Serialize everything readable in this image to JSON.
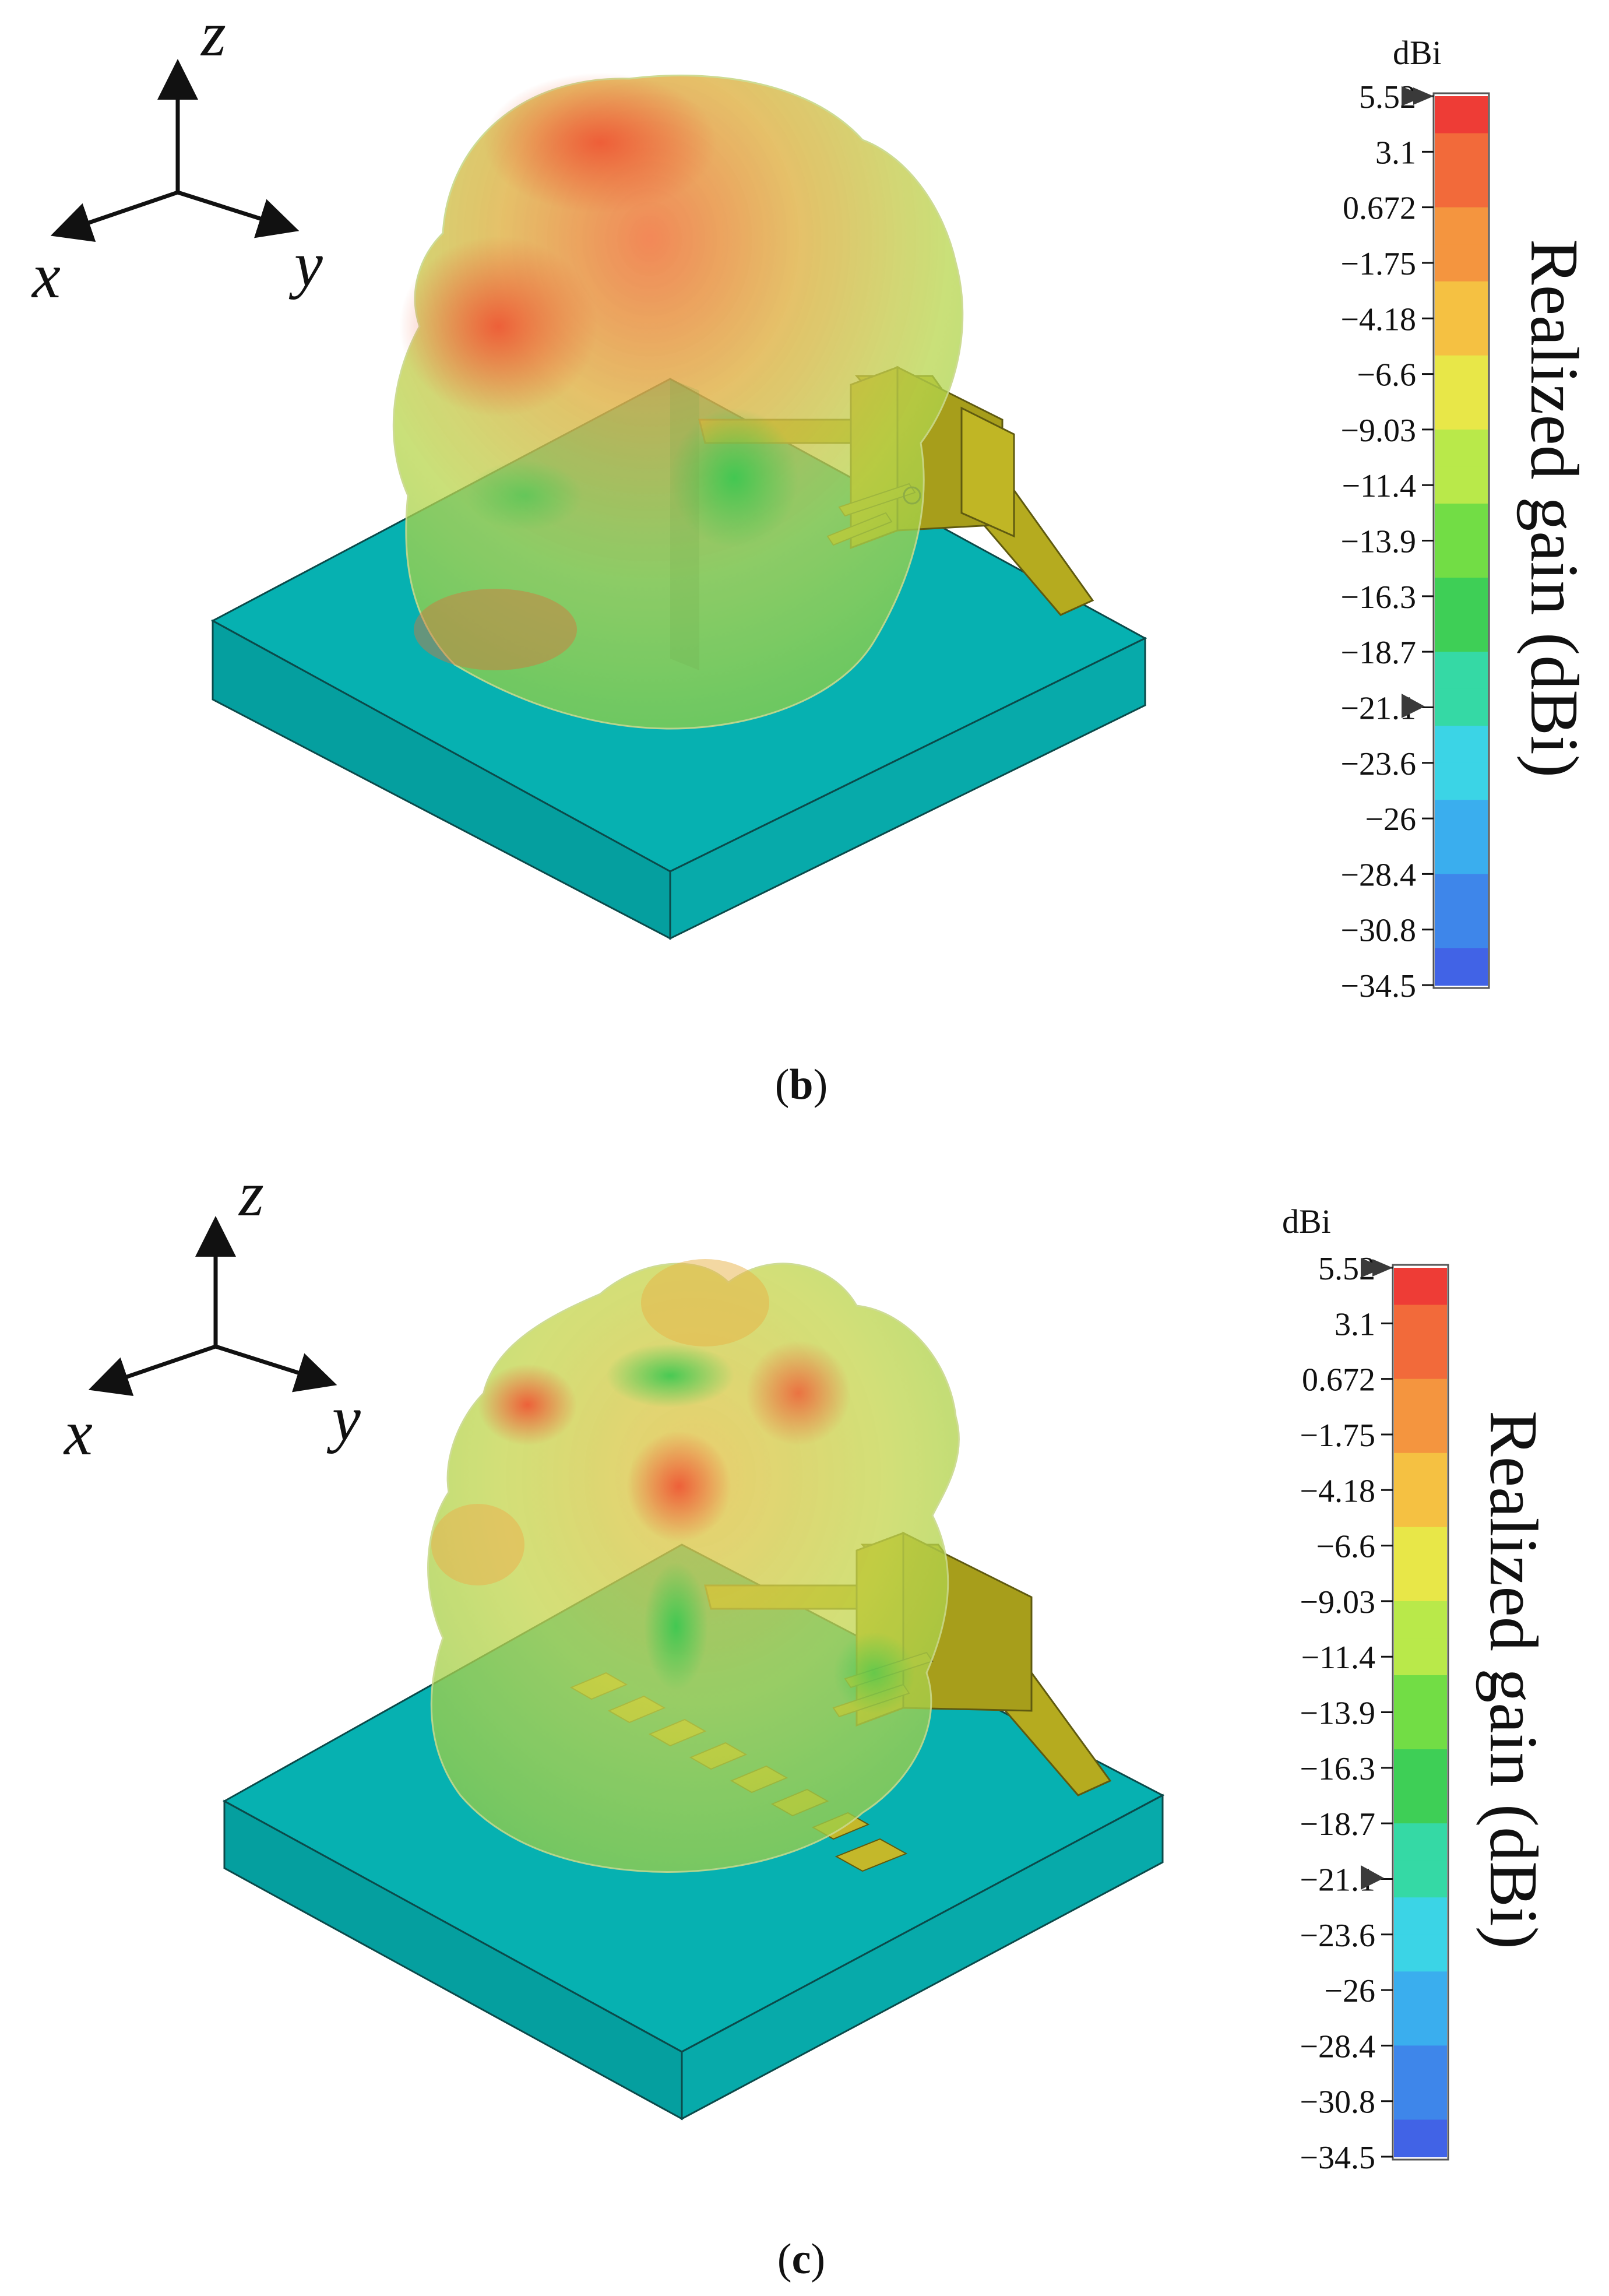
{
  "panels": [
    {
      "caption_letter": "b",
      "axes": {
        "x": "x",
        "y": "y",
        "z": "z"
      },
      "colorbar": {
        "unit": "dBi",
        "title": "Realized gain (dBi)",
        "ticks": [
          "5.52",
          "3.1",
          "0.672",
          "−1.75",
          "−4.18",
          "−6.6",
          "−9.03",
          "−11.4",
          "−13.9",
          "−16.3",
          "−18.7",
          "−21.1",
          "−23.6",
          "−26",
          "−28.4",
          "−30.8",
          "−34.5"
        ]
      }
    },
    {
      "caption_letter": "c",
      "axes": {
        "x": "x",
        "y": "y",
        "z": "z"
      },
      "colorbar": {
        "unit": "dBi",
        "title": "Realized gain (dBi)",
        "ticks": [
          "5.52",
          "3.1",
          "0.672",
          "−1.75",
          "−4.18",
          "−6.6",
          "−9.03",
          "−11.4",
          "−13.9",
          "−16.3",
          "−18.7",
          "−21.1",
          "−23.6",
          "−26",
          "−28.4",
          "−30.8",
          "−34.5"
        ]
      }
    }
  ],
  "colors": {
    "substrate_top": "#06b1b1",
    "substrate_side": "#05a3a3",
    "copper": "#b5ab1f",
    "copper_dark": "#8f8814",
    "colorbar_stops": [
      "#ee3c36",
      "#f26a3a",
      "#f4953f",
      "#f5c142",
      "#e8e748",
      "#b9e94a",
      "#72dd45",
      "#3ecf56",
      "#35d9a5",
      "#3bd4e6",
      "#3aaeee",
      "#3e86ea",
      "#4163e6"
    ]
  }
}
